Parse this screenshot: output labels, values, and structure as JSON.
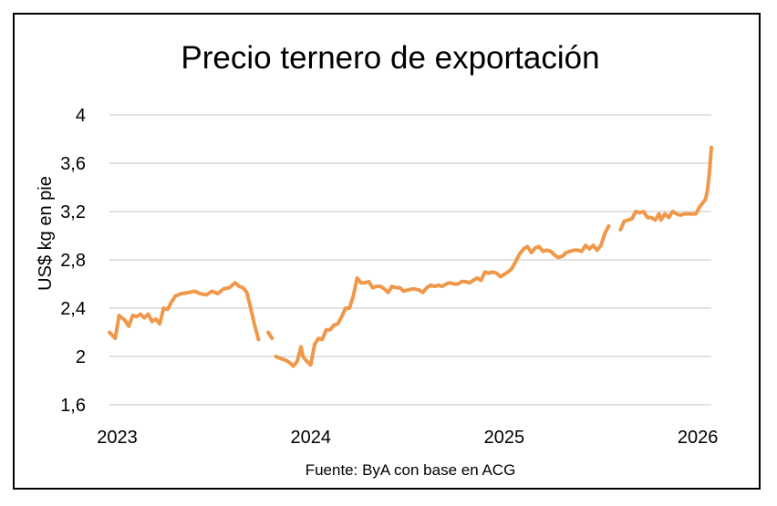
{
  "chart_data": {
    "type": "line",
    "title": "Precio ternero de exportación",
    "xlabel": "",
    "ylabel": "US$ kg en pie",
    "source": "Fuente: ByA con base en ACG",
    "ylim": [
      1.6,
      4.0
    ],
    "yticks": [
      "1,6",
      "2",
      "2,4",
      "2,8",
      "3,2",
      "3,6",
      "4"
    ],
    "ytick_values": [
      1.6,
      2.0,
      2.4,
      2.8,
      3.2,
      3.6,
      4.0
    ],
    "xlim": [
      2022.96,
      2026.07
    ],
    "xticks": [
      "2023",
      "2024",
      "2025",
      "2026"
    ],
    "xtick_values": [
      2023.0,
      2024.0,
      2025.0,
      2026.0
    ],
    "grid": "horizontal",
    "legend": "none",
    "colors": {
      "series": "#F0984A",
      "grid": "#D9D9D9"
    },
    "series": [
      {
        "segments": [
          [
            [
              2022.96,
              2.2
            ],
            [
              2022.99,
              2.15
            ],
            [
              2023.01,
              2.34
            ],
            [
              2023.04,
              2.3
            ],
            [
              2023.06,
              2.25
            ],
            [
              2023.08,
              2.34
            ],
            [
              2023.1,
              2.33
            ],
            [
              2023.12,
              2.35
            ],
            [
              2023.14,
              2.32
            ],
            [
              2023.16,
              2.35
            ],
            [
              2023.18,
              2.29
            ],
            [
              2023.2,
              2.31
            ],
            [
              2023.22,
              2.27
            ],
            [
              2023.24,
              2.4
            ],
            [
              2023.26,
              2.39
            ],
            [
              2023.28,
              2.45
            ],
            [
              2023.3,
              2.5
            ],
            [
              2023.33,
              2.52
            ],
            [
              2023.37,
              2.53
            ],
            [
              2023.4,
              2.54
            ],
            [
              2023.43,
              2.52
            ],
            [
              2023.46,
              2.51
            ],
            [
              2023.49,
              2.54
            ],
            [
              2023.52,
              2.52
            ],
            [
              2023.55,
              2.56
            ],
            [
              2023.58,
              2.57
            ],
            [
              2023.61,
              2.61
            ],
            [
              2023.63,
              2.58
            ],
            [
              2023.65,
              2.57
            ],
            [
              2023.67,
              2.53
            ],
            [
              2023.69,
              2.4
            ],
            [
              2023.71,
              2.26
            ],
            [
              2023.73,
              2.14
            ]
          ],
          [
            [
              2023.78,
              2.2
            ],
            [
              2023.8,
              2.15
            ]
          ],
          [
            [
              2023.82,
              2.0
            ],
            [
              2023.85,
              1.98
            ],
            [
              2023.87,
              1.97
            ],
            [
              2023.89,
              1.95
            ],
            [
              2023.91,
              1.92
            ],
            [
              2023.93,
              1.96
            ],
            [
              2023.95,
              2.08
            ],
            [
              2023.96,
              2.0
            ],
            [
              2023.98,
              1.96
            ],
            [
              2024.0,
              1.93
            ],
            [
              2024.02,
              2.1
            ],
            [
              2024.04,
              2.15
            ],
            [
              2024.06,
              2.14
            ],
            [
              2024.08,
              2.22
            ],
            [
              2024.1,
              2.22
            ],
            [
              2024.12,
              2.26
            ],
            [
              2024.14,
              2.27
            ],
            [
              2024.16,
              2.33
            ],
            [
              2024.18,
              2.4
            ],
            [
              2024.2,
              2.4
            ],
            [
              2024.22,
              2.5
            ],
            [
              2024.24,
              2.65
            ],
            [
              2024.26,
              2.61
            ],
            [
              2024.28,
              2.61
            ],
            [
              2024.3,
              2.62
            ],
            [
              2024.32,
              2.57
            ],
            [
              2024.34,
              2.58
            ],
            [
              2024.36,
              2.58
            ],
            [
              2024.38,
              2.56
            ],
            [
              2024.4,
              2.53
            ],
            [
              2024.42,
              2.58
            ],
            [
              2024.44,
              2.57
            ],
            [
              2024.46,
              2.57
            ],
            [
              2024.48,
              2.54
            ],
            [
              2024.5,
              2.55
            ],
            [
              2024.53,
              2.56
            ],
            [
              2024.56,
              2.55
            ],
            [
              2024.58,
              2.53
            ],
            [
              2024.6,
              2.57
            ],
            [
              2024.62,
              2.59
            ],
            [
              2024.64,
              2.58
            ],
            [
              2024.66,
              2.59
            ],
            [
              2024.68,
              2.58
            ],
            [
              2024.7,
              2.6
            ],
            [
              2024.72,
              2.61
            ],
            [
              2024.74,
              2.6
            ],
            [
              2024.76,
              2.6
            ],
            [
              2024.78,
              2.62
            ],
            [
              2024.8,
              2.62
            ],
            [
              2024.82,
              2.61
            ],
            [
              2024.84,
              2.63
            ],
            [
              2024.86,
              2.65
            ],
            [
              2024.88,
              2.63
            ],
            [
              2024.9,
              2.7
            ],
            [
              2024.92,
              2.69
            ],
            [
              2024.94,
              2.7
            ],
            [
              2024.96,
              2.69
            ],
            [
              2024.98,
              2.66
            ],
            [
              2025.0,
              2.68
            ],
            [
              2025.02,
              2.7
            ],
            [
              2025.04,
              2.73
            ],
            [
              2025.06,
              2.79
            ],
            [
              2025.08,
              2.85
            ],
            [
              2025.1,
              2.89
            ],
            [
              2025.12,
              2.91
            ],
            [
              2025.14,
              2.86
            ],
            [
              2025.16,
              2.9
            ],
            [
              2025.18,
              2.91
            ],
            [
              2025.2,
              2.87
            ],
            [
              2025.22,
              2.88
            ],
            [
              2025.24,
              2.87
            ],
            [
              2025.26,
              2.84
            ],
            [
              2025.28,
              2.82
            ],
            [
              2025.3,
              2.83
            ],
            [
              2025.32,
              2.86
            ],
            [
              2025.34,
              2.87
            ],
            [
              2025.36,
              2.88
            ],
            [
              2025.38,
              2.88
            ],
            [
              2025.4,
              2.87
            ],
            [
              2025.42,
              2.92
            ],
            [
              2025.44,
              2.89
            ],
            [
              2025.46,
              2.92
            ],
            [
              2025.48,
              2.88
            ],
            [
              2025.5,
              2.92
            ],
            [
              2025.52,
              3.02
            ],
            [
              2025.54,
              3.08
            ]
          ],
          [
            [
              2025.6,
              3.05
            ],
            [
              2025.62,
              3.12
            ],
            [
              2025.64,
              3.13
            ],
            [
              2025.66,
              3.14
            ],
            [
              2025.68,
              3.2
            ],
            [
              2025.7,
              3.19
            ],
            [
              2025.72,
              3.2
            ],
            [
              2025.74,
              3.15
            ],
            [
              2025.76,
              3.15
            ],
            [
              2025.78,
              3.13
            ],
            [
              2025.8,
              3.18
            ],
            [
              2025.81,
              3.13
            ],
            [
              2025.83,
              3.18
            ],
            [
              2025.85,
              3.15
            ],
            [
              2025.87,
              3.2
            ],
            [
              2025.89,
              3.18
            ],
            [
              2025.91,
              3.17
            ],
            [
              2025.93,
              3.18
            ],
            [
              2025.95,
              3.18
            ],
            [
              2025.97,
              3.18
            ],
            [
              2025.99,
              3.18
            ],
            [
              2026.01,
              3.24
            ],
            [
              2026.03,
              3.28
            ],
            [
              2026.04,
              3.3
            ],
            [
              2026.05,
              3.38
            ],
            [
              2026.06,
              3.52
            ],
            [
              2026.07,
              3.73
            ]
          ]
        ]
      }
    ]
  }
}
